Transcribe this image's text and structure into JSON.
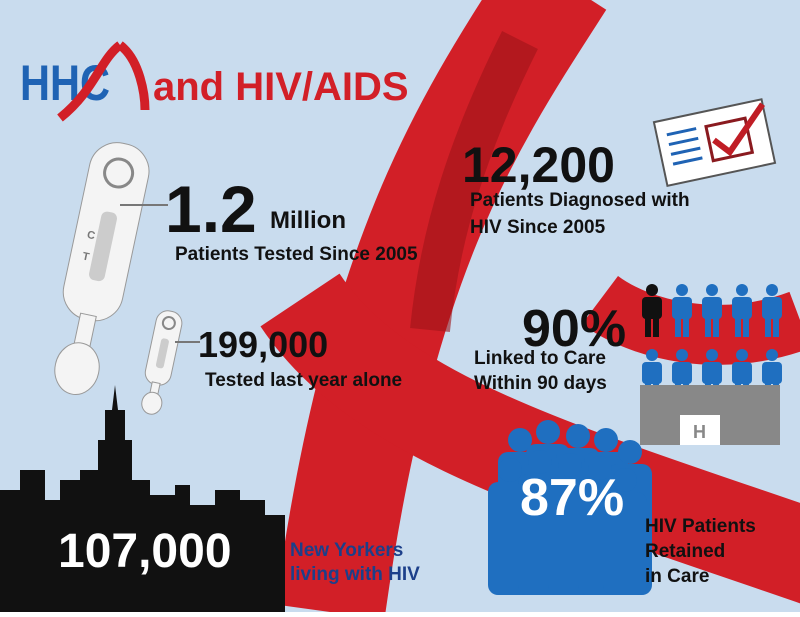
{
  "header": {
    "logo": "HHC",
    "title": "and HIV/AIDS"
  },
  "stats": [
    {
      "value": "1.2",
      "unit": "Million",
      "label": [
        "Patients Tested Since 2005"
      ]
    },
    {
      "value": "199,000",
      "label": [
        "Tested last year alone"
      ]
    },
    {
      "value": "107,000",
      "label": [
        "New Yorkers",
        "living with HIV"
      ]
    },
    {
      "value": "12,200",
      "label": [
        "Patients Diagnosed with",
        "HIV Since 2005"
      ]
    },
    {
      "value": "90%",
      "label": [
        "Linked to Care",
        "Within 90 days"
      ]
    },
    {
      "value": "87%",
      "label": [
        "HIV Patients",
        "Retained",
        "in Care"
      ]
    }
  ],
  "icons": {
    "test_marks": [
      "C",
      "T"
    ],
    "building_sign": "H"
  }
}
